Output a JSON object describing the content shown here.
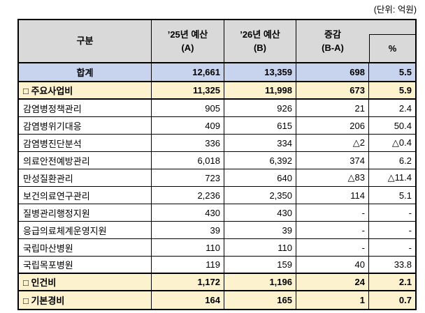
{
  "unit_label": "(단위: 억원)",
  "colors": {
    "header_bg": "#d9d9d9",
    "total_row_bg": "#c8d3ee",
    "section_row_bg": "#fcf3ce",
    "border": "#000000"
  },
  "table": {
    "header": {
      "category": "구분",
      "budget_a": "’25년 예산\n(A)",
      "budget_b": "’26년 예산\n(B)",
      "change": "증감\n(B-A)",
      "percent": "%"
    },
    "rows": [
      {
        "name": "합계",
        "a": "12,661",
        "b": "13,359",
        "diff": "698",
        "pct": "5.5"
      },
      {
        "name": "□ 주요사업비",
        "a": "11,325",
        "b": "11,998",
        "diff": "673",
        "pct": "5.9"
      },
      {
        "name": "감염병정책관리",
        "a": "905",
        "b": "926",
        "diff": "21",
        "pct": "2.4"
      },
      {
        "name": "감염병위기대응",
        "a": "409",
        "b": "615",
        "diff": "206",
        "pct": "50.4"
      },
      {
        "name": "감염병진단분석",
        "a": "336",
        "b": "334",
        "diff": "△2",
        "pct": "△0.4"
      },
      {
        "name": "의료안전예방관리",
        "a": "6,018",
        "b": "6,392",
        "diff": "374",
        "pct": "6.2"
      },
      {
        "name": "만성질환관리",
        "a": "723",
        "b": "640",
        "diff": "△83",
        "pct": "△11.4"
      },
      {
        "name": "보건의료연구관리",
        "a": "2,236",
        "b": "2,350",
        "diff": "114",
        "pct": "5.1"
      },
      {
        "name": "질병관리행정지원",
        "a": "430",
        "b": "430",
        "diff": "-",
        "pct": "-"
      },
      {
        "name": "응급의료체계운영지원",
        "a": "39",
        "b": "39",
        "diff": "-",
        "pct": "-"
      },
      {
        "name": "국립마산병원",
        "a": "110",
        "b": "110",
        "diff": "-",
        "pct": "-"
      },
      {
        "name": "국립목포병원",
        "a": "119",
        "b": "159",
        "diff": "40",
        "pct": "33.8"
      },
      {
        "name": "□ 인건비",
        "a": "1,172",
        "b": "1,196",
        "diff": "24",
        "pct": "2.1"
      },
      {
        "name": "□ 기본경비",
        "a": "164",
        "b": "165",
        "diff": "1",
        "pct": "0.7"
      }
    ]
  }
}
